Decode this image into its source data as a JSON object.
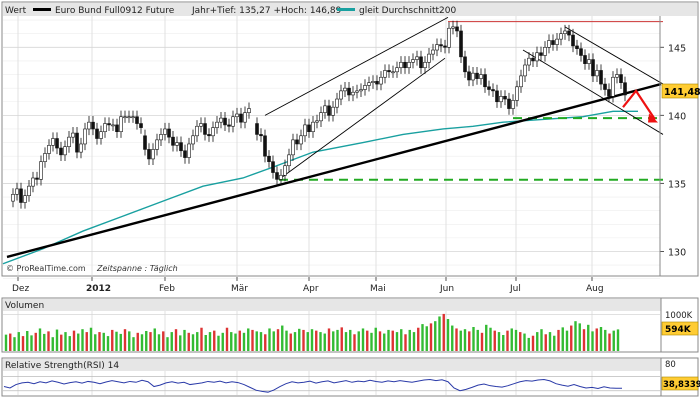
{
  "colors": {
    "up": "#33bb33",
    "down": "#dd3333",
    "wick": "#111111",
    "ma": "#19a0a0",
    "support": "#22aa22",
    "resistance": "#cc3333",
    "arrow": "#ee1111",
    "panel_bg": "#ffffff",
    "grid": "#d6d6d6",
    "price_badge": "#ffcc33"
  },
  "header": {
    "value_label": "Wert",
    "instrument_name": "Euro Bund Full0912 Future",
    "range_text": "Jahr+Tief: 135,27 +Hoch: 146,89",
    "ma_name": "gleit Durchschnitt200"
  },
  "chart_data": [
    {
      "type": "candlestick",
      "title": "Euro Bund Full0912 Future",
      "x_ticks": [
        "Dez",
        "2012",
        "Feb",
        "Mär",
        "Apr",
        "Mai",
        "Jun",
        "Jul",
        "Aug"
      ],
      "y_ticks": [
        130,
        135,
        140,
        145
      ],
      "ylim": [
        128.2,
        147.3
      ],
      "grid": true,
      "last_price": "141,48",
      "branding": "© ProRealTime.com",
      "timeframe": "Zeitspanne : Täglich",
      "ma_series": {
        "name": "gleit Durchschnitt200",
        "points": [
          [
            0,
            129.1
          ],
          [
            40,
            130.2
          ],
          [
            80,
            131.5
          ],
          [
            120,
            132.6
          ],
          [
            160,
            133.7
          ],
          [
            200,
            134.8
          ],
          [
            240,
            135.4
          ],
          [
            270,
            136.2
          ],
          [
            310,
            137.3
          ],
          [
            360,
            138.0
          ],
          [
            400,
            138.6
          ],
          [
            440,
            139.0
          ],
          [
            470,
            139.2
          ],
          [
            500,
            139.5
          ],
          [
            540,
            139.7
          ],
          [
            580,
            139.9
          ],
          [
            610,
            140.3
          ],
          [
            635,
            140.3
          ]
        ]
      },
      "trend_lines": [
        {
          "name": "long-term-support",
          "points": [
            [
              4,
              129.6
            ],
            [
              658,
              142.3
            ]
          ]
        },
        {
          "name": "rising-channel-lower",
          "points": [
            [
              276,
              135.3
            ],
            [
              442,
              144.2
            ]
          ]
        },
        {
          "name": "rising-channel-upper",
          "points": [
            [
              262,
              140.0
            ],
            [
              445,
              147.2
            ]
          ]
        },
        {
          "name": "falling-channel-upper",
          "points": [
            [
              562,
              146.5
            ],
            [
              660,
              142.3
            ]
          ]
        },
        {
          "name": "falling-channel-lower",
          "points": [
            [
              520,
              144.8
            ],
            [
              660,
              138.6
            ]
          ]
        }
      ],
      "horizontal_levels": [
        {
          "name": "resistance",
          "value": 146.89,
          "x_range": [
            445,
            660
          ]
        },
        {
          "name": "support-mid",
          "value": 139.8,
          "x_range": [
            510,
            660
          ]
        },
        {
          "name": "support-low",
          "value": 135.27,
          "x_range": [
            276,
            660
          ]
        }
      ],
      "arrow": {
        "points": [
          [
            620,
            140.6
          ],
          [
            633,
            141.8
          ],
          [
            652,
            139.7
          ]
        ]
      },
      "ohlc_x": [
        10,
        14,
        18,
        22,
        26,
        30,
        34,
        38,
        42,
        46,
        50,
        54,
        58,
        62,
        66,
        70,
        74,
        78,
        82,
        86,
        90,
        94,
        98,
        102,
        106,
        110,
        114,
        118,
        122,
        126,
        130,
        134,
        138,
        142,
        146,
        150,
        154,
        158,
        162,
        166,
        170,
        174,
        178,
        182,
        186,
        190,
        194,
        198,
        202,
        206,
        210,
        214,
        218,
        222,
        226,
        230,
        234,
        238,
        242,
        246,
        254,
        258,
        262,
        266,
        270,
        274,
        278,
        282,
        286,
        290,
        294,
        298,
        302,
        306,
        310,
        314,
        318,
        322,
        326,
        330,
        334,
        338,
        342,
        346,
        350,
        354,
        358,
        362,
        366,
        370,
        374,
        378,
        382,
        386,
        390,
        394,
        398,
        402,
        406,
        410,
        414,
        418,
        422,
        426,
        430,
        434,
        438,
        442,
        446,
        450,
        454,
        458,
        462,
        466,
        470,
        474,
        478,
        482,
        486,
        490,
        494,
        498,
        502,
        506,
        510,
        514,
        518,
        522,
        526,
        530,
        534,
        538,
        542,
        546,
        550,
        554,
        558,
        562,
        566,
        570,
        574,
        578,
        582,
        586,
        590,
        594,
        598,
        602,
        606,
        610,
        614,
        618,
        622
      ],
      "ohlc_close": [
        134.2,
        134.6,
        133.6,
        134.1,
        134.8,
        135.4,
        135.3,
        136.6,
        137.2,
        137.8,
        138.3,
        137.6,
        137.1,
        137.7,
        138.4,
        138.7,
        137.3,
        137.9,
        139.0,
        139.5,
        139.0,
        138.3,
        138.8,
        139.4,
        139.3,
        139.3,
        138.8,
        139.9,
        139.9,
        139.9,
        139.9,
        139.4,
        139.1,
        137.5,
        136.8,
        137.5,
        138.2,
        138.6,
        139.0,
        138.4,
        137.8,
        138.0,
        137.4,
        136.9,
        137.9,
        138.5,
        139.2,
        139.4,
        138.6,
        138.5,
        139.1,
        139.5,
        139.8,
        139.3,
        139.2,
        139.9,
        140.1,
        139.5,
        140.2,
        140.5,
        138.6,
        138.5,
        137.0,
        136.6,
        135.8,
        135.3,
        135.6,
        136.3,
        137.1,
        138.2,
        137.9,
        138.5,
        139.3,
        138.8,
        139.5,
        139.6,
        140.2,
        140.7,
        140.0,
        140.6,
        141.2,
        141.8,
        142.0,
        141.5,
        141.7,
        141.8,
        141.9,
        142.2,
        142.4,
        142.5,
        142.3,
        142.8,
        143.3,
        143.2,
        143.2,
        143.5,
        143.9,
        143.5,
        143.9,
        144.1,
        144.3,
        143.5,
        143.9,
        144.5,
        144.8,
        145.2,
        145.1,
        145.0,
        146.4,
        146.5,
        146.2,
        144.3,
        143.2,
        142.6,
        143.1,
        142.7,
        143.0,
        142.1,
        141.9,
        141.8,
        141.0,
        141.4,
        141.2,
        140.5,
        141.1,
        142.1,
        142.9,
        143.7,
        144.2,
        144.0,
        144.6,
        144.4,
        145.0,
        145.5,
        145.2,
        145.6,
        146.0,
        146.2,
        145.9,
        145.1,
        144.9,
        144.4,
        143.8,
        144.1,
        142.9,
        143.3,
        142.3,
        141.9,
        141.4,
        142.8,
        143.0,
        142.4,
        141.5
      ],
      "ohlc_open": [
        133.7,
        134.2,
        134.6,
        133.6,
        134.1,
        134.8,
        135.4,
        135.3,
        136.6,
        137.2,
        137.8,
        138.3,
        137.6,
        137.1,
        137.7,
        138.4,
        138.7,
        137.3,
        137.9,
        139.0,
        139.5,
        139.0,
        138.3,
        138.8,
        139.4,
        139.3,
        139.3,
        138.8,
        139.9,
        139.9,
        139.9,
        139.9,
        139.4,
        138.5,
        137.5,
        136.8,
        137.5,
        138.2,
        138.6,
        139.0,
        138.4,
        137.8,
        138.0,
        137.4,
        136.9,
        137.9,
        138.5,
        139.2,
        139.4,
        138.6,
        138.5,
        139.1,
        139.5,
        139.8,
        139.3,
        139.2,
        139.9,
        140.1,
        139.5,
        140.2,
        139.4,
        138.6,
        138.5,
        137.0,
        136.6,
        135.8,
        135.3,
        135.6,
        136.3,
        137.1,
        138.2,
        137.9,
        138.5,
        139.3,
        138.8,
        139.5,
        139.6,
        140.2,
        140.7,
        140.0,
        140.6,
        141.2,
        141.8,
        142.0,
        141.5,
        141.7,
        141.8,
        141.9,
        142.2,
        142.4,
        142.5,
        142.3,
        142.8,
        143.3,
        143.2,
        143.2,
        143.5,
        143.9,
        143.5,
        143.9,
        144.1,
        144.3,
        143.5,
        143.9,
        144.5,
        144.8,
        145.2,
        145.1,
        145.0,
        146.4,
        146.5,
        146.2,
        144.3,
        143.2,
        142.6,
        143.1,
        142.7,
        143.0,
        142.1,
        141.9,
        141.8,
        141.0,
        141.4,
        141.2,
        140.5,
        141.1,
        142.1,
        142.9,
        143.7,
        144.2,
        144.0,
        144.6,
        144.4,
        145.0,
        145.5,
        145.2,
        145.6,
        146.0,
        146.2,
        145.9,
        145.1,
        144.9,
        144.4,
        143.8,
        144.1,
        142.9,
        143.3,
        142.3,
        141.9,
        141.4,
        142.8,
        143.0,
        142.4
      ]
    },
    {
      "type": "bar",
      "title": "Volumen",
      "y_ticks": [
        "1000K"
      ],
      "ylim": [
        0,
        1100
      ],
      "last_value": "594K",
      "values": [
        450,
        480,
        380,
        520,
        410,
        550,
        430,
        500,
        620,
        470,
        540,
        380,
        590,
        450,
        520,
        410,
        560,
        480,
        600,
        520,
        640,
        460,
        520,
        500,
        410,
        580,
        530,
        470,
        600,
        540,
        380,
        500,
        460,
        550,
        520,
        620,
        460,
        540,
        380,
        520,
        600,
        430,
        580,
        500,
        460,
        520,
        640,
        440,
        520,
        560,
        420,
        500,
        640,
        520,
        480,
        560,
        500,
        620,
        580,
        540,
        520,
        460,
        620,
        540,
        600,
        700,
        560,
        480,
        520,
        610,
        580,
        520,
        600,
        560,
        520,
        480,
        620,
        540,
        580,
        650,
        520,
        580,
        460,
        540,
        620,
        560,
        500,
        640,
        540,
        480,
        580,
        560,
        520,
        600,
        460,
        580,
        520,
        640,
        740,
        680,
        760,
        820,
        950,
        1020,
        880,
        700,
        620,
        560,
        600,
        540,
        660,
        580,
        500,
        720,
        640,
        560,
        520,
        440,
        560,
        620,
        580,
        520,
        480,
        360,
        420,
        520,
        600,
        460,
        520,
        420,
        580,
        650,
        560,
        700,
        820,
        760,
        600,
        720,
        540,
        620,
        660,
        580,
        480,
        560,
        594
      ]
    },
    {
      "type": "line",
      "title": "Relative Strength(RSI) 14",
      "y_ticks": [
        80
      ],
      "ylim": [
        15,
        100
      ],
      "last_value": "38,8339",
      "x": [
        0,
        6,
        12,
        18,
        24,
        30,
        36,
        42,
        48,
        54,
        60,
        66,
        72,
        78,
        84,
        90,
        96,
        102,
        108,
        114,
        120,
        126,
        132,
        138,
        144,
        150,
        156,
        162,
        168,
        174,
        180,
        186,
        192,
        198,
        204,
        210,
        216,
        222,
        228,
        234,
        240,
        246,
        252,
        258,
        264,
        270,
        276,
        282,
        288,
        294,
        300,
        306,
        312,
        318,
        324,
        330,
        336,
        342,
        348,
        354,
        360,
        366,
        372,
        378,
        384,
        390,
        396,
        402,
        408,
        414,
        420,
        426,
        432,
        438,
        444,
        450,
        456,
        462,
        468,
        474,
        480,
        486,
        492,
        498,
        504,
        510,
        516,
        522,
        528,
        534,
        540,
        546,
        552,
        558,
        564,
        570,
        576,
        582,
        588,
        594,
        600,
        606,
        612,
        618
      ],
      "values": [
        45,
        40,
        52,
        58,
        60,
        55,
        62,
        58,
        65,
        60,
        54,
        59,
        62,
        57,
        63,
        60,
        55,
        61,
        66,
        62,
        58,
        63,
        60,
        67,
        62,
        45,
        50,
        58,
        62,
        57,
        60,
        52,
        55,
        58,
        63,
        60,
        64,
        58,
        62,
        59,
        52,
        42,
        32,
        28,
        25,
        33,
        45,
        55,
        62,
        58,
        60,
        64,
        57,
        62,
        65,
        58,
        62,
        66,
        60,
        64,
        62,
        67,
        63,
        60,
        65,
        62,
        66,
        63,
        60,
        64,
        68,
        70,
        66,
        69,
        62,
        40,
        30,
        35,
        42,
        50,
        54,
        48,
        45,
        43,
        48,
        55,
        62,
        66,
        64,
        68,
        70,
        65,
        55,
        50,
        46,
        52,
        45,
        40,
        42,
        38,
        44,
        40,
        39,
        38.8
      ]
    }
  ]
}
